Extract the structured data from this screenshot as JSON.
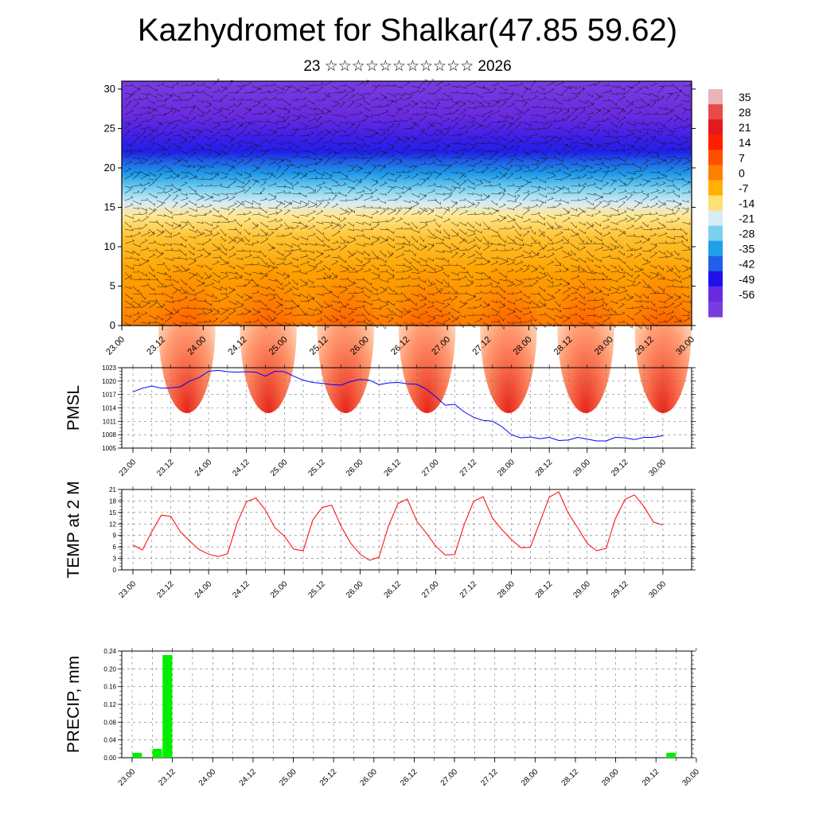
{
  "title": "Kazhydromet for Shalkar(47.85 59.62)",
  "subtitle": "23 ☆☆☆☆☆☆☆☆☆☆☆ 2026",
  "time_ticks": [
    "23.00",
    "23.12",
    "24.00",
    "24.12",
    "25.00",
    "25.12",
    "26.00",
    "26.12",
    "27.00",
    "27.12",
    "28.00",
    "28.12",
    "29.00",
    "29.12",
    "30.00"
  ],
  "chart_data": [
    {
      "type": "heatmap",
      "name": "cross-section",
      "x": [
        "23.00",
        "23.12",
        "24.00",
        "24.12",
        "25.00",
        "25.12",
        "26.00",
        "26.12",
        "27.00",
        "27.12",
        "28.00",
        "28.12",
        "29.00",
        "29.12",
        "30.00"
      ],
      "ylim": [
        0,
        31
      ],
      "y_ticks": [
        0,
        5,
        10,
        15,
        20,
        25,
        30
      ],
      "colorbar_labels": [
        "35",
        "28",
        "21",
        "14",
        "7",
        "0",
        "-7",
        "-14",
        "-21",
        "-28",
        "-35",
        "-42",
        "-49",
        "-56"
      ],
      "colorbar_colors": [
        "#ebb4b4",
        "#e84a4a",
        "#e31a1c",
        "#ff2000",
        "#ff5000",
        "#ff8000",
        "#ffb000",
        "#ffe070",
        "#d8ecf4",
        "#7ad0f0",
        "#20a0e8",
        "#2060e8",
        "#2010e8",
        "#6a2ae0",
        "#7a3ce0"
      ]
    },
    {
      "type": "line",
      "name": "pmsl",
      "ylabel": "PMSL",
      "ylim": [
        1005,
        1023
      ],
      "y_ticks": [
        1005,
        1008,
        1011,
        1014,
        1017,
        1020,
        1023
      ],
      "x_ticks": [
        "23.00",
        "23.12",
        "24.00",
        "24.12",
        "25.00",
        "25.12",
        "26.00",
        "26.12",
        "27.00",
        "27.12",
        "28.00",
        "28.12",
        "29.00",
        "29.12",
        "30.00"
      ],
      "color": "#0000ff",
      "x_hours": [
        0,
        3,
        6,
        9,
        12,
        15,
        18,
        21,
        24,
        27,
        30,
        33,
        36,
        39,
        42,
        45,
        48,
        51,
        54,
        57,
        60,
        63,
        66,
        69,
        72,
        75,
        78,
        81,
        84,
        87,
        90,
        93,
        96,
        99,
        102,
        105,
        108,
        111,
        114,
        117,
        120,
        123,
        126,
        129,
        132,
        135,
        138,
        141,
        144,
        147,
        150,
        153,
        156,
        159,
        162,
        165,
        168
      ],
      "values": [
        1017.6,
        1018.4,
        1018.9,
        1018.4,
        1018.5,
        1018.7,
        1020.0,
        1020.8,
        1022.2,
        1022.4,
        1022.1,
        1022.0,
        1022.1,
        1022.0,
        1021.1,
        1022.2,
        1022.1,
        1021.1,
        1020.2,
        1019.7,
        1019.5,
        1019.2,
        1019.1,
        1019.9,
        1020.4,
        1020.2,
        1019.2,
        1019.6,
        1019.7,
        1019.4,
        1019.3,
        1018.2,
        1016.5,
        1014.6,
        1014.8,
        1013.1,
        1011.9,
        1011.2,
        1011.0,
        1009.8,
        1008.0,
        1007.3,
        1007.5,
        1007.1,
        1007.4,
        1006.7,
        1006.8,
        1007.4,
        1007.0,
        1006.6,
        1006.6,
        1007.4,
        1007.3,
        1006.9,
        1007.4,
        1007.4,
        1007.8
      ]
    },
    {
      "type": "line",
      "name": "temp2m",
      "ylabel": "TEMP at 2 M",
      "ylim": [
        0,
        21
      ],
      "y_ticks": [
        0,
        3,
        6,
        9,
        12,
        15,
        18,
        21
      ],
      "x_ticks": [
        "23.00",
        "23.12",
        "24.00",
        "24.12",
        "25.00",
        "25.12",
        "26.00",
        "26.12",
        "27.00",
        "27.12",
        "28.00",
        "28.12",
        "29.00",
        "29.12",
        "30.00"
      ],
      "color": "#ff0000",
      "x_hours": [
        0,
        3,
        6,
        9,
        12,
        15,
        18,
        21,
        24,
        27,
        30,
        33,
        36,
        39,
        42,
        45,
        48,
        51,
        54,
        57,
        60,
        63,
        66,
        69,
        72,
        75,
        78,
        81,
        84,
        87,
        90,
        93,
        96,
        99,
        102,
        105,
        108,
        111,
        114,
        117,
        120,
        123,
        126,
        129,
        132,
        135,
        138,
        141,
        144,
        147,
        150,
        153,
        156,
        159,
        162,
        165,
        168
      ],
      "values": [
        6.5,
        5.2,
        10.0,
        14.3,
        14.0,
        10.0,
        7.5,
        5.3,
        4.1,
        3.5,
        4.2,
        12.2,
        17.8,
        18.8,
        15.6,
        11.0,
        8.8,
        5.4,
        5.0,
        13.0,
        16.3,
        16.9,
        11.4,
        7.0,
        4.1,
        2.5,
        3.3,
        11.4,
        17.3,
        18.5,
        12.7,
        9.6,
        6.2,
        3.9,
        4.0,
        11.8,
        17.9,
        19.1,
        13.5,
        10.5,
        7.9,
        5.8,
        5.9,
        12.5,
        19.0,
        20.4,
        14.8,
        11.0,
        6.9,
        5.0,
        5.6,
        13.5,
        18.4,
        19.6,
        16.5,
        12.5,
        11.7
      ]
    },
    {
      "type": "bar",
      "name": "precip",
      "ylabel": "PRECIP, mm",
      "ylim": [
        0,
        0.24
      ],
      "y_ticks": [
        "0.00",
        "0.04",
        "0.08",
        "0.12",
        "0.16",
        "0.20",
        "0.24"
      ],
      "x_ticks": [
        "23.00",
        "23.12",
        "24.00",
        "24.12",
        "25.00",
        "25.12",
        "26.00",
        "26.12",
        "27.00",
        "27.12",
        "28.00",
        "28.12",
        "29.00",
        "29.12",
        "30.00"
      ],
      "color": "#00ee00",
      "bars": [
        {
          "x_hours": 1.5,
          "value": 0.011
        },
        {
          "x_hours": 7.5,
          "value": 0.02
        },
        {
          "x_hours": 10.5,
          "value": 0.231
        },
        {
          "x_hours": 160.5,
          "value": 0.011
        }
      ]
    }
  ]
}
